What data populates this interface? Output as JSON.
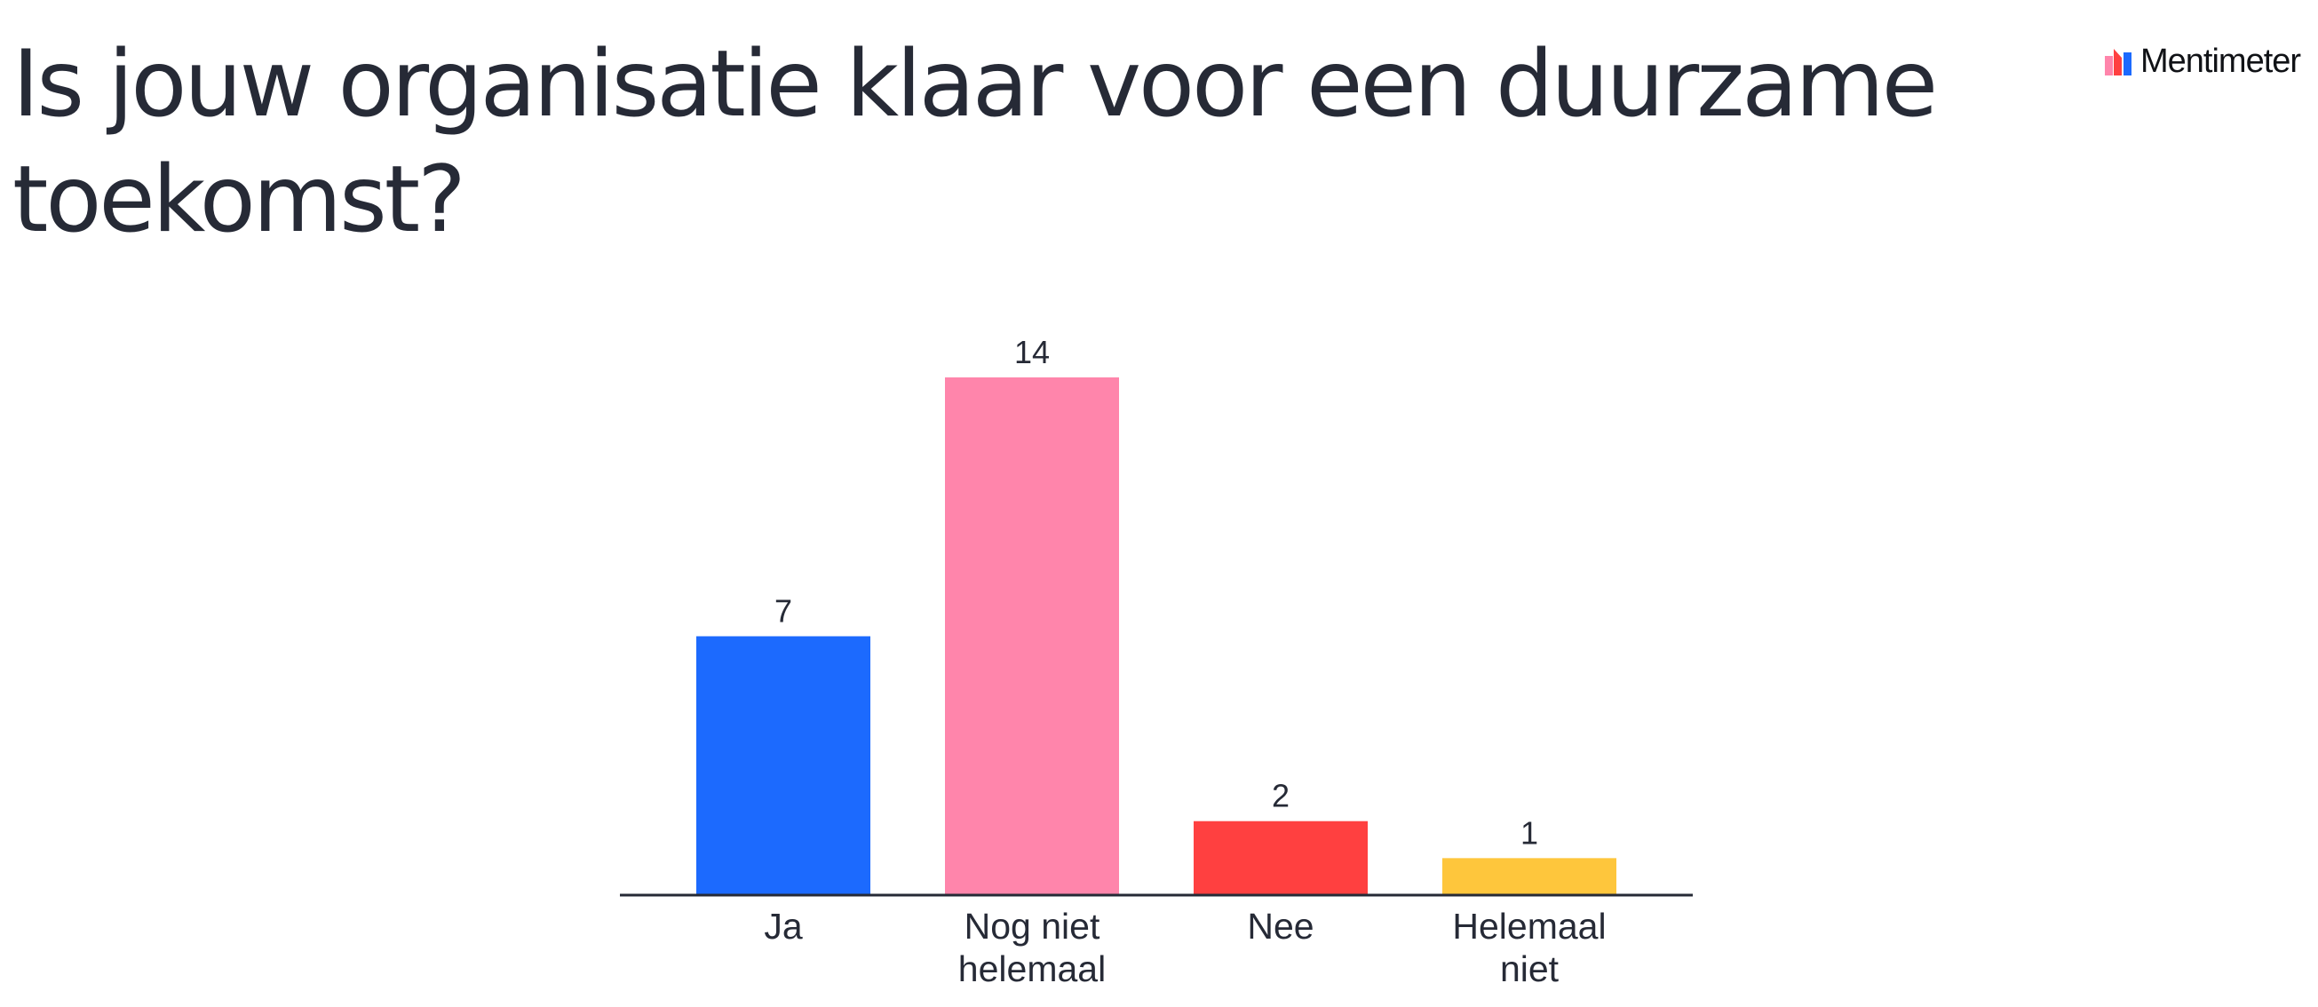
{
  "brand": {
    "name": "Mentimeter",
    "icon": "mentimeter-logo-icon"
  },
  "chart_data": {
    "type": "bar",
    "title": "Is jouw organisatie klaar voor een duurzame toekomst?",
    "categories": [
      [
        "Ja"
      ],
      [
        "Nog niet",
        "helemaal"
      ],
      [
        "Nee"
      ],
      [
        "Helemaal",
        "niet"
      ]
    ],
    "values": [
      7,
      14,
      2,
      1
    ],
    "colors": [
      "#1c6afe",
      "#ff85ab",
      "#ff4040",
      "#fec63c"
    ],
    "axis_color": "#262a36",
    "ylim": [
      0,
      14
    ],
    "grid": false,
    "legend": "none"
  }
}
